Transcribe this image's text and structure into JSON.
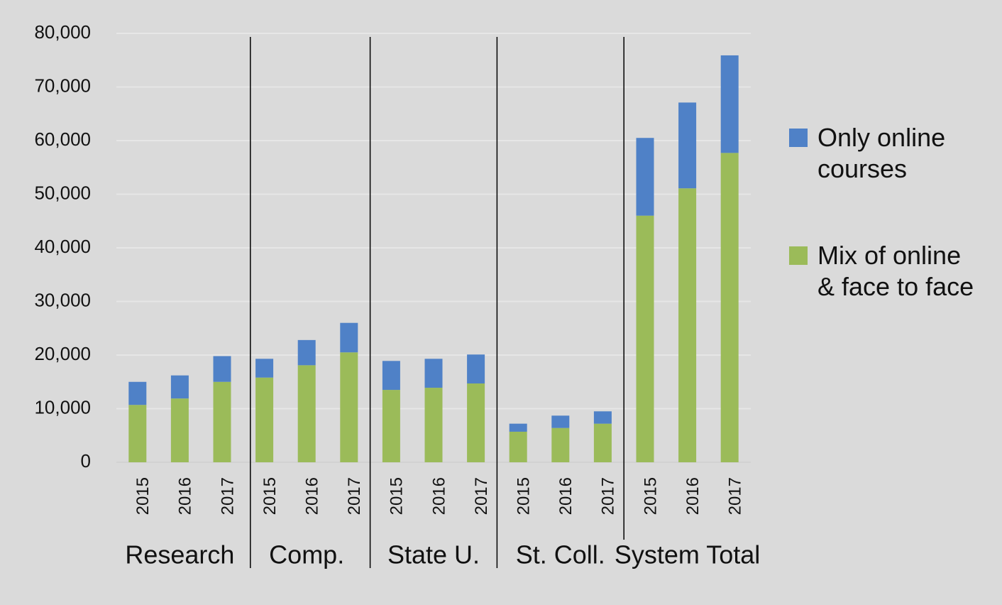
{
  "chart_data": {
    "type": "bar",
    "stacked": true,
    "categories": [
      "2015",
      "2016",
      "2017",
      "2015",
      "2016",
      "2017",
      "2015",
      "2016",
      "2017",
      "2015",
      "2016",
      "2017",
      "2015",
      "2016",
      "2017"
    ],
    "groups": [
      {
        "name": "Research",
        "size": 3
      },
      {
        "name": "Comp.",
        "size": 3
      },
      {
        "name": "State U.",
        "size": 3
      },
      {
        "name": "St. Coll.",
        "size": 3
      },
      {
        "name": "System Total",
        "size": 3
      }
    ],
    "series": [
      {
        "name": "Mix of online & face to face",
        "color": "#9bbb59",
        "values": [
          10700,
          11900,
          15000,
          15800,
          18100,
          20500,
          13500,
          13900,
          14700,
          5700,
          6400,
          7200,
          46000,
          51100,
          57700
        ]
      },
      {
        "name": "Only online courses",
        "color": "#4f81c7",
        "values": [
          4300,
          4300,
          4800,
          3500,
          4700,
          5500,
          5400,
          5400,
          5400,
          1500,
          2300,
          2300,
          14500,
          16000,
          18200
        ]
      }
    ],
    "ylim": [
      0,
      80000
    ],
    "yticks": [
      0,
      {
        "value": 10000,
        "label": "10,000"
      },
      {
        "value": 20000,
        "label": "20,000"
      },
      {
        "value": 30000,
        "label": "30,000"
      },
      {
        "value": 40000,
        "label": "40,000"
      },
      {
        "value": 50000,
        "label": "50,000"
      },
      {
        "value": 60000,
        "label": "60,000"
      },
      {
        "value": 70000,
        "label": "70,000"
      },
      {
        "value": 80000,
        "label": "80,000"
      }
    ],
    "grid": true,
    "legend": "right"
  }
}
